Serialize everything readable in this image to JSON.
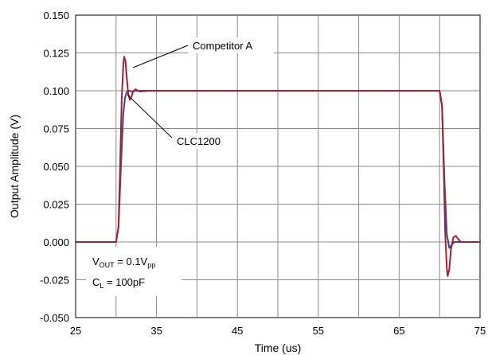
{
  "chart_data": {
    "type": "line",
    "title": "",
    "xlabel": "Time (us)",
    "ylabel": "Output Amplitude (V)",
    "xlim": [
      25,
      75
    ],
    "ylim": [
      -0.05,
      0.15
    ],
    "x_ticks": [
      25,
      35,
      45,
      55,
      65,
      75
    ],
    "y_ticks": [
      -0.05,
      -0.025,
      0.0,
      0.025,
      0.05,
      0.075,
      0.1,
      0.125,
      0.15
    ],
    "x_tick_labels": [
      "25",
      "35",
      "45",
      "55",
      "65",
      "75"
    ],
    "y_tick_labels": [
      "-0.050",
      "-0.025",
      "0.000",
      "0.025",
      "0.050",
      "0.075",
      "0.100",
      "0.125",
      "0.150"
    ],
    "grid": true,
    "legend": "none",
    "series": [
      {
        "name": "Competitor A",
        "color": "#9b2335",
        "x": [
          25,
          30.0,
          30.3,
          30.5,
          30.7,
          30.9,
          31.0,
          31.15,
          31.3,
          31.5,
          31.7,
          31.9,
          32.1,
          32.4,
          32.7,
          33.0,
          34.0,
          69.6,
          70.0,
          70.3,
          70.5,
          70.7,
          70.9,
          71.0,
          71.2,
          71.4,
          71.7,
          72.0,
          72.3,
          72.6,
          73.0,
          75
        ],
        "y": [
          0.0,
          0.0,
          0.01,
          0.05,
          0.095,
          0.118,
          0.1225,
          0.12,
          0.11,
          0.098,
          0.094,
          0.096,
          0.0995,
          0.101,
          0.1,
          0.0995,
          0.1,
          0.1,
          0.1,
          0.09,
          0.05,
          0.005,
          -0.018,
          -0.0225,
          -0.018,
          -0.005,
          0.003,
          0.004,
          0.002,
          0.0,
          0.0,
          0.0
        ]
      },
      {
        "name": "CLC1200",
        "color": "#3a4a8c",
        "x": [
          25,
          30.0,
          30.3,
          30.6,
          30.9,
          31.1,
          31.3,
          31.6,
          32.0,
          32.5,
          33.0,
          69.6,
          70.0,
          70.3,
          70.6,
          70.9,
          71.2,
          71.5,
          71.8,
          72.2,
          75
        ],
        "y": [
          0.0,
          0.0,
          0.01,
          0.05,
          0.085,
          0.095,
          0.099,
          0.1,
          0.0995,
          0.1,
          0.1,
          0.1,
          0.1,
          0.09,
          0.04,
          0.005,
          -0.004,
          -0.002,
          0.0,
          0.0,
          0.0
        ]
      }
    ],
    "annotations": [
      {
        "text": "Competitor A"
      },
      {
        "text": "CLC1200"
      }
    ],
    "conditions": [
      {
        "main": "V",
        "sub": "OUT",
        "rest": " = 0.1V",
        "sub2": "pp"
      },
      {
        "main": "C",
        "sub": "L",
        "rest": " = 100pF"
      }
    ]
  }
}
